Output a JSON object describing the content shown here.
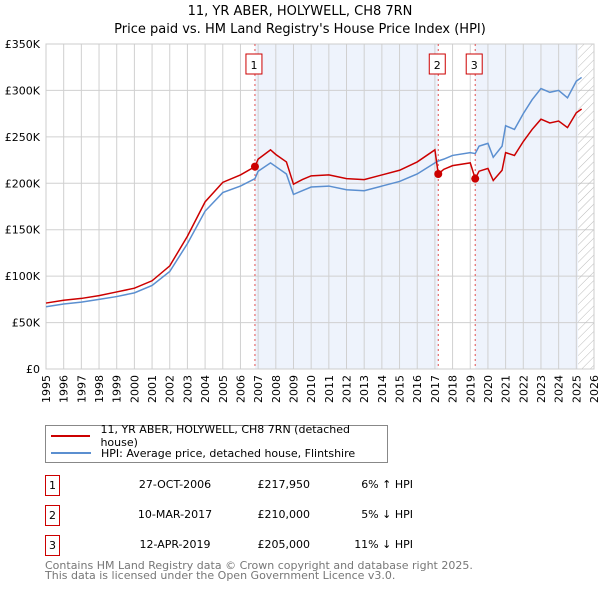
{
  "title": "11, YR ABER, HOLYWELL, CH8 7RN",
  "subtitle": "Price paid vs. HM Land Registry's House Price Index (HPI)",
  "chart_data": {
    "type": "line",
    "ylim": [
      0,
      350000
    ],
    "xlim": [
      1995,
      2026
    ],
    "yticks": [
      {
        "v": 0,
        "label": "£0"
      },
      {
        "v": 50000,
        "label": "£50K"
      },
      {
        "v": 100000,
        "label": "£100K"
      },
      {
        "v": 150000,
        "label": "£150K"
      },
      {
        "v": 200000,
        "label": "£200K"
      },
      {
        "v": 250000,
        "label": "£250K"
      },
      {
        "v": 300000,
        "label": "£300K"
      },
      {
        "v": 350000,
        "label": "£350K"
      }
    ],
    "xticks": [
      "1995",
      "1996",
      "1997",
      "1998",
      "1999",
      "2000",
      "2001",
      "2002",
      "2003",
      "2004",
      "2005",
      "2006",
      "2007",
      "2008",
      "2009",
      "2010",
      "2011",
      "2012",
      "2013",
      "2014",
      "2015",
      "2016",
      "2017",
      "2018",
      "2019",
      "2020",
      "2021",
      "2022",
      "2023",
      "2024",
      "2025",
      "2026"
    ],
    "grid": true,
    "forecast_from": 2025.1,
    "series": [
      {
        "name": "11, YR ABER, HOLYWELL, CH8 7RN (detached house)",
        "color": "#cc0000",
        "x": [
          1995,
          1996,
          1997,
          1998,
          1999,
          2000,
          2001,
          2002,
          2003,
          2004,
          2005,
          2006,
          2006.82,
          2007,
          2007.7,
          2008,
          2008.6,
          2009,
          2009.5,
          2010,
          2011,
          2012,
          2013,
          2014,
          2015,
          2016,
          2017,
          2017.19,
          2017.5,
          2018,
          2019,
          2019.28,
          2019.5,
          2020,
          2020.3,
          2020.8,
          2021,
          2021.5,
          2022,
          2022.5,
          2023,
          2023.5,
          2024,
          2024.5,
          2025,
          2025.3
        ],
        "y": [
          71000,
          74000,
          76000,
          79000,
          83000,
          87000,
          95000,
          111000,
          143000,
          180000,
          201000,
          209000,
          217950,
          226000,
          236000,
          231000,
          223000,
          199000,
          204000,
          208000,
          209000,
          205000,
          204000,
          209000,
          214000,
          223000,
          236000,
          210000,
          215000,
          219000,
          222000,
          205000,
          213000,
          216000,
          203000,
          214000,
          233000,
          230000,
          245000,
          258000,
          269000,
          265000,
          267000,
          260000,
          276000,
          280000
        ]
      },
      {
        "name": "HPI: Average price, detached house, Flintshire",
        "color": "#5b8fd0",
        "x": [
          1995,
          1996,
          1997,
          1998,
          1999,
          2000,
          2001,
          2002,
          2003,
          2004,
          2005,
          2006,
          2006.82,
          2007,
          2007.7,
          2008,
          2008.6,
          2009,
          2009.5,
          2010,
          2011,
          2012,
          2013,
          2014,
          2015,
          2016,
          2017,
          2017.19,
          2017.5,
          2018,
          2019,
          2019.28,
          2019.5,
          2020,
          2020.3,
          2020.8,
          2021,
          2021.5,
          2022,
          2022.5,
          2023,
          2023.5,
          2024,
          2024.5,
          2025,
          2025.3
        ],
        "y": [
          67000,
          70000,
          72000,
          75000,
          78000,
          82000,
          90000,
          105000,
          135000,
          170000,
          190000,
          197000,
          205000,
          213000,
          222000,
          218000,
          210000,
          188000,
          192000,
          196000,
          197000,
          193000,
          192000,
          197000,
          202000,
          210000,
          222000,
          224000,
          226000,
          230000,
          233000,
          232000,
          240000,
          243000,
          228000,
          240000,
          262000,
          258000,
          275000,
          290000,
          302000,
          298000,
          300000,
          292000,
          310000,
          314000
        ]
      }
    ],
    "sales": [
      {
        "n": "1",
        "x": 2006.82,
        "y": 217950
      },
      {
        "n": "2",
        "x": 2017.19,
        "y": 210000
      },
      {
        "n": "3",
        "x": 2019.28,
        "y": 205000
      }
    ]
  },
  "legend": [
    "11, YR ABER, HOLYWELL, CH8 7RN (detached house)",
    "HPI: Average price, detached house, Flintshire"
  ],
  "colors": {
    "price": "#cc0000",
    "hpi": "#5b8fd0",
    "shade": "#eef3fc"
  },
  "table": [
    {
      "n": "1",
      "date": "27-OCT-2006",
      "price": "£217,950",
      "hpi": "6% ↑ HPI"
    },
    {
      "n": "2",
      "date": "10-MAR-2017",
      "price": "£210,000",
      "hpi": "5% ↓ HPI"
    },
    {
      "n": "3",
      "date": "12-APR-2019",
      "price": "£205,000",
      "hpi": "11% ↓ HPI"
    }
  ],
  "footer": [
    "Contains HM Land Registry data © Crown copyright and database right 2025.",
    "This data is licensed under the Open Government Licence v3.0."
  ]
}
